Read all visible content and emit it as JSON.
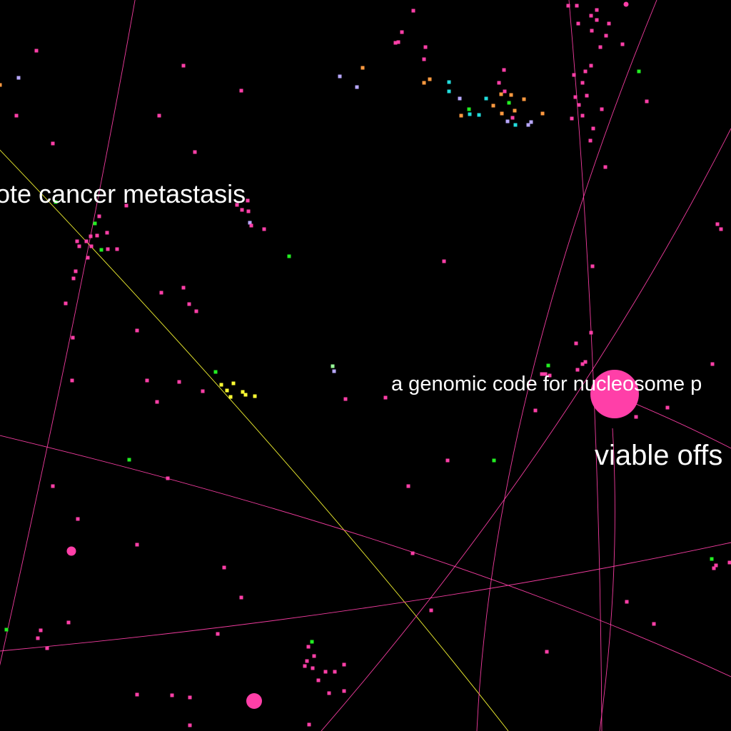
{
  "background_color": "#000000",
  "colors": {
    "pink": "#ff3fa8",
    "yellow": "#ffff33",
    "green": "#22ee22",
    "orange": "#ff9a40",
    "cyan": "#22dddd",
    "lavender": "#b8a8ff",
    "light_green": "#99ff99",
    "white": "#ffffff"
  },
  "labels": [
    {
      "id": "label-cancer-metastasis",
      "text": "ote cancer metastasis"
    },
    {
      "id": "label-genomic-code",
      "text": "a genomic code for nucleosome p"
    },
    {
      "id": "label-viable-offspring",
      "text": "viable offs"
    }
  ]
}
